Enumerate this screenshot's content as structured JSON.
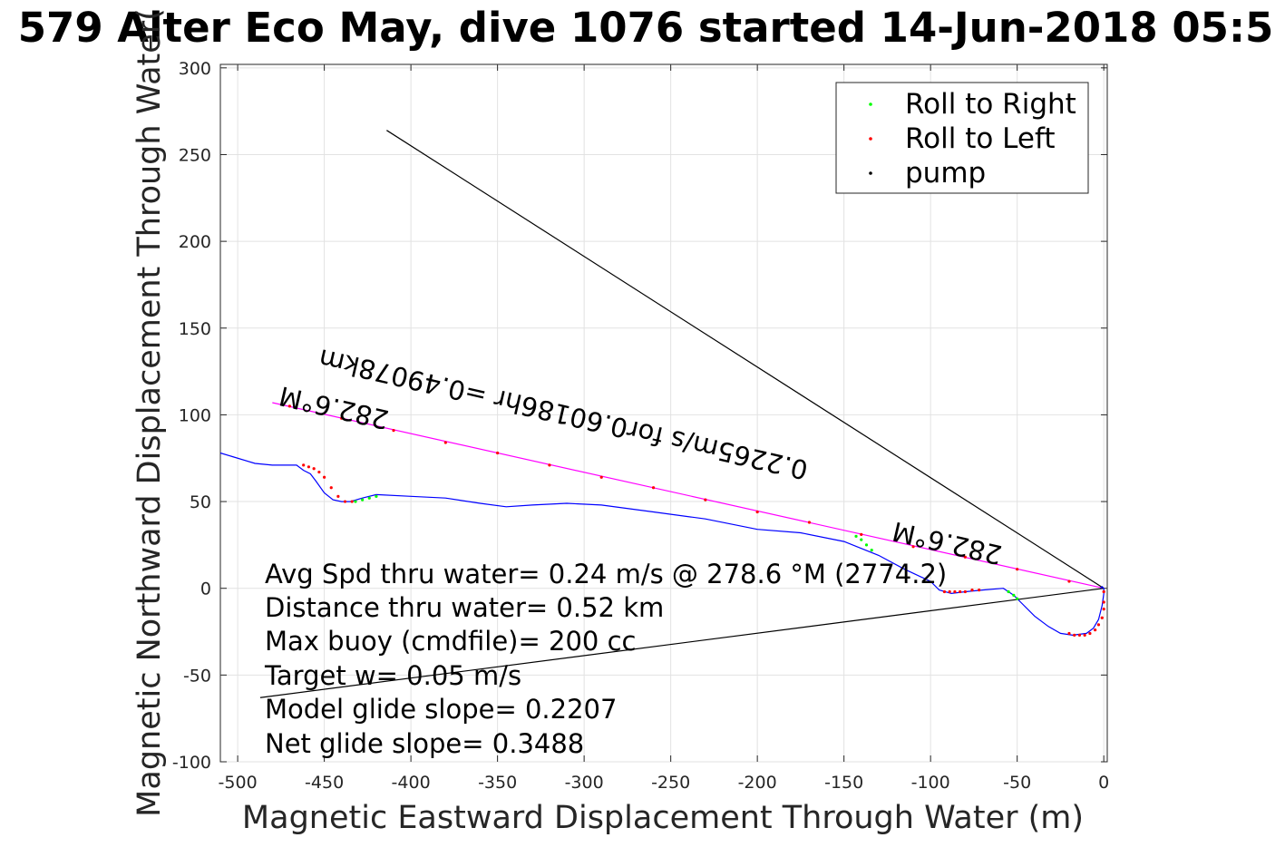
{
  "title": "579 Alter Eco May, dive 1076 started 14-Jun-2018 05:5",
  "chart_data": {
    "type": "line",
    "xlabel": "Magnetic Eastward Displacement Through Water (m)",
    "ylabel": "Magnetic Northward Displacement Through Water(",
    "xlim": [
      -510,
      2
    ],
    "ylim": [
      -100,
      302
    ],
    "xticks": [
      -500,
      -450,
      -400,
      -350,
      -300,
      -250,
      -200,
      -150,
      -100,
      -50,
      0
    ],
    "yticks": [
      -100,
      -50,
      0,
      50,
      100,
      150,
      200,
      250,
      300
    ],
    "grid": true,
    "legend_position": "top-right",
    "legend": [
      {
        "label": "Roll to Right",
        "color": "#00ff00"
      },
      {
        "label": "Roll to Left",
        "color": "#ff0000"
      },
      {
        "label": "pump",
        "color": "#000000"
      }
    ],
    "track": {
      "color": "#0000ff",
      "x": [
        -510,
        -490,
        -480,
        -466,
        -462,
        -458,
        -455,
        -450,
        -445,
        -440,
        -435,
        -428,
        -420,
        -400,
        -380,
        -360,
        -345,
        -330,
        -310,
        -290,
        -260,
        -230,
        -200,
        -175,
        -150,
        -130,
        -115,
        -100,
        -95,
        -88,
        -80,
        -70,
        -58,
        -52,
        -48,
        -40,
        -32,
        -25,
        -18,
        -10,
        -6,
        -3,
        -1,
        0,
        0,
        -1,
        -2
      ],
      "y": [
        78,
        72,
        71,
        71,
        68,
        66,
        62,
        55,
        51,
        50,
        50,
        52,
        54,
        53,
        52,
        49,
        47,
        48,
        49,
        48,
        44,
        40,
        34,
        32,
        27,
        19,
        11,
        4,
        -1,
        -3,
        -2,
        -1,
        0,
        -4,
        -8,
        -16,
        -22,
        -26,
        -27,
        -26,
        -23,
        -18,
        -10,
        -3,
        0,
        1,
        0
      ]
    },
    "reference_lines": [
      {
        "name": "heading-line",
        "color": "#ff00ff",
        "x": [
          -480,
          0
        ],
        "y": [
          107,
          0
        ]
      },
      {
        "name": "black-line-upper",
        "color": "#000000",
        "x": [
          -414,
          0
        ],
        "y": [
          264,
          0
        ]
      },
      {
        "name": "black-line-lower",
        "color": "#000000",
        "x": [
          -487,
          0
        ],
        "y": [
          -63,
          0
        ]
      }
    ],
    "roll_right_points": [
      {
        "x": [
          -432,
          -428,
          -424,
          -420
        ],
        "y": [
          50,
          51,
          52,
          53
        ]
      },
      {
        "x": [
          -143,
          -140,
          -137,
          -134
        ],
        "y": [
          30,
          28,
          25,
          22
        ]
      },
      {
        "x": [
          -55,
          -52,
          -50
        ],
        "y": [
          -2,
          -4,
          -6
        ]
      }
    ],
    "roll_left_points": [
      {
        "x": [
          -462,
          -459,
          -456,
          -453,
          -450,
          -446,
          -442,
          -438,
          -434
        ],
        "y": [
          71,
          70,
          69,
          67,
          64,
          58,
          53,
          50,
          50
        ]
      },
      {
        "x": [
          -92,
          -89,
          -86,
          -83,
          -80,
          -76,
          -72
        ],
        "y": [
          -2,
          -2,
          -2,
          -2,
          -2,
          -1,
          -1
        ]
      },
      {
        "x": [
          -20,
          -17,
          -14,
          -11,
          -8,
          -5,
          -3,
          -1,
          0,
          0,
          0
        ],
        "y": [
          -26,
          -27,
          -27,
          -27,
          -26,
          -24,
          -21,
          -17,
          -12,
          -8,
          -2
        ]
      },
      {
        "x": [
          -470,
          -440,
          -410,
          -380,
          -350,
          -320,
          -290,
          -260,
          -230,
          -200,
          -170,
          -140,
          -110,
          -80,
          -50,
          -20
        ],
        "y": [
          105,
          98,
          91,
          84,
          78,
          71,
          64,
          58,
          51,
          44,
          38,
          31,
          24,
          18,
          11,
          4
        ]
      }
    ],
    "annotations": [
      {
        "text": "282.6°M",
        "x": -412,
        "y": 102,
        "angle": 193
      },
      {
        "text": "0.2265m/s for0.60186hr =0.49078km",
        "x": -170,
        "y": 73,
        "angle": 193
      },
      {
        "text": "282.6°M",
        "x": -58,
        "y": 24,
        "angle": 193
      }
    ]
  },
  "stats": {
    "line1": "Avg Spd thru water=  0.24 m/s @ 278.6 °M (2774.2)",
    "line2": "Distance thru water=  0.52 km",
    "line3": "Max buoy (cmdfile)= 200 cc",
    "line4": "Target w= 0.05 m/s",
    "line5": "Model glide slope= 0.2207",
    "line6": "Net glide slope= 0.3488"
  }
}
